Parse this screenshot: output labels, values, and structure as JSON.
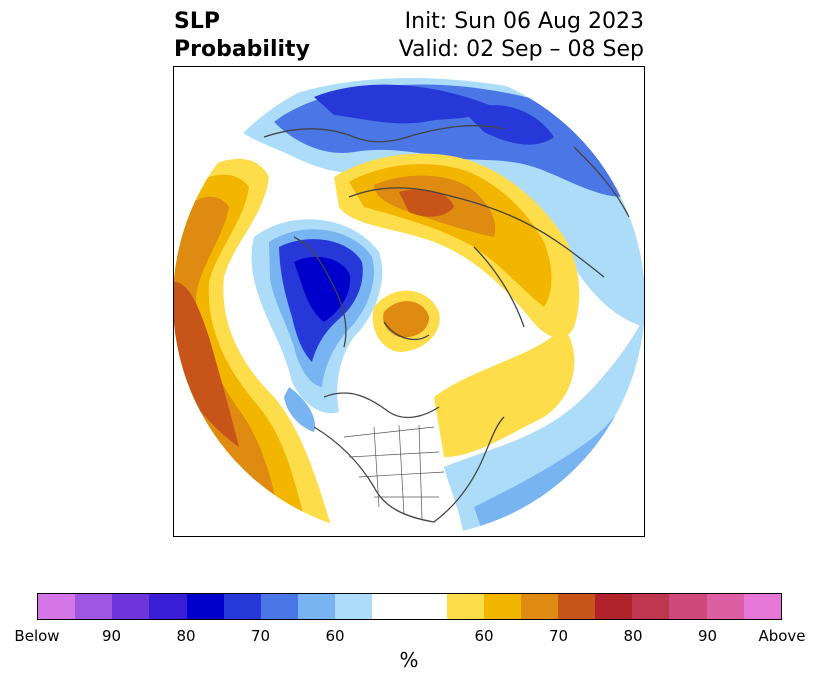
{
  "title": {
    "variable_line1": "SLP",
    "variable_line2": "Probability",
    "init": "Init: Sun 06 Aug 2023",
    "valid": "Valid: 02 Sep – 08 Sep"
  },
  "colorbar": {
    "unit": "%",
    "colors": [
      "#d476e8",
      "#9e56e3",
      "#6e36da",
      "#3a1dd6",
      "#0000cc",
      "#2738d8",
      "#4a76e6",
      "#78b3f2",
      "#addcf9",
      "#ffffff",
      "#ffffff",
      "#fedd4b",
      "#f3b600",
      "#df8a10",
      "#c75418",
      "#b0232a",
      "#bf3651",
      "#cf4a7b",
      "#dc5fa4",
      "#e677d8"
    ],
    "tick_labels": [
      "Below",
      "90",
      "80",
      "70",
      "60",
      "60",
      "70",
      "80",
      "90",
      "Above"
    ]
  }
}
